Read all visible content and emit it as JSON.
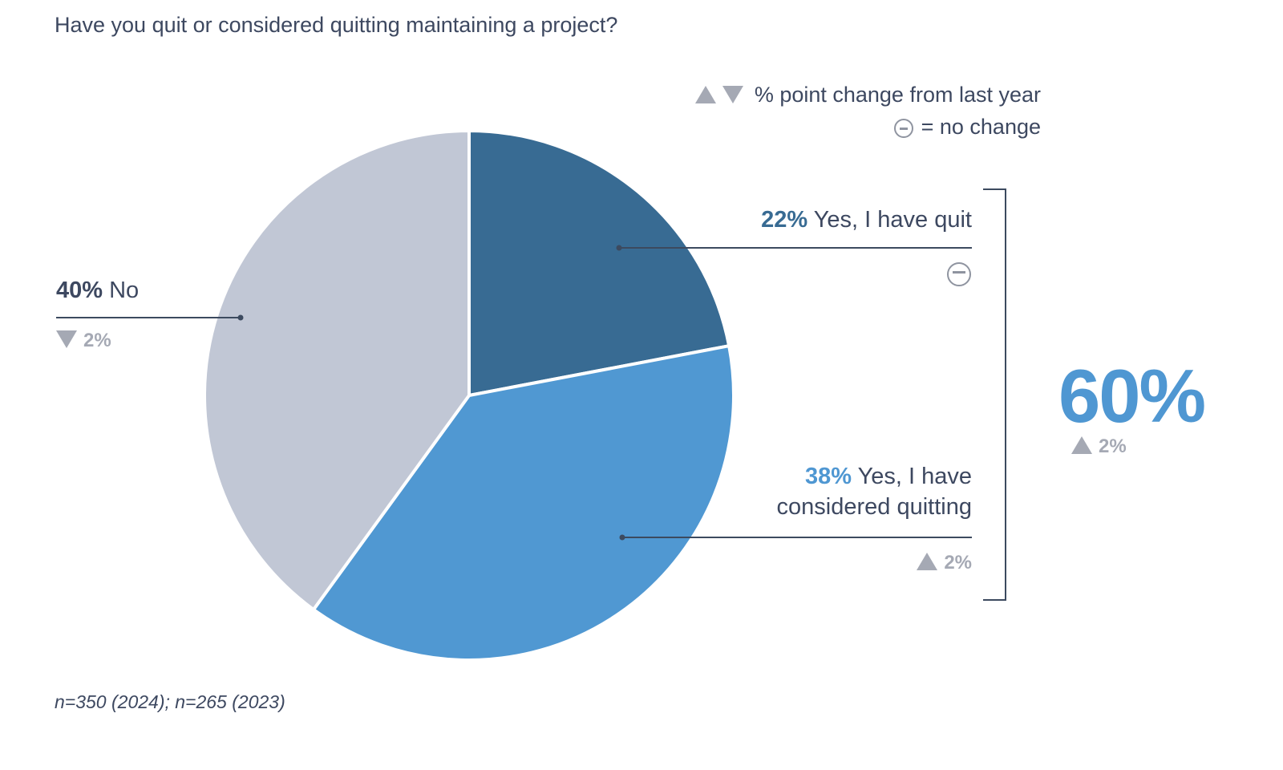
{
  "title": "Have you quit or considered quitting maintaining a project?",
  "legend": {
    "change_text": "% point change from last year",
    "no_change_text": "= no change",
    "up_icon": "triangle-up-icon",
    "down_icon": "triangle-down-icon",
    "no_change_icon": "circle-minus-icon"
  },
  "footnote": "n=350 (2024); n=265 (2023)",
  "combined": {
    "value": "60%",
    "change": "2%",
    "direction": "up"
  },
  "labels": {
    "quit": {
      "pct": "22%",
      "text": "Yes, I have quit",
      "change": "no change"
    },
    "considered": {
      "pct": "38%",
      "text_line1": "Yes, I have",
      "text_line2": "considered quitting",
      "change": "2%",
      "direction": "up"
    },
    "no": {
      "pct": "40%",
      "text": "No",
      "change": "2%",
      "direction": "down"
    }
  },
  "chart_data": {
    "type": "pie",
    "title": "Have you quit or considered quitting maintaining a project?",
    "slices": [
      {
        "label": "Yes, I have quit",
        "value": 22,
        "color": "#386b93",
        "change_pts": 0
      },
      {
        "label": "Yes, I have considered quitting",
        "value": 38,
        "color": "#5098d2",
        "change_pts": 2
      },
      {
        "label": "No",
        "value": 40,
        "color": "#c1c7d5",
        "change_pts": -2
      }
    ],
    "combined_yes": {
      "value": 60,
      "change_pts": 2
    },
    "start_angle": "12 o'clock",
    "direction": "clockwise"
  }
}
